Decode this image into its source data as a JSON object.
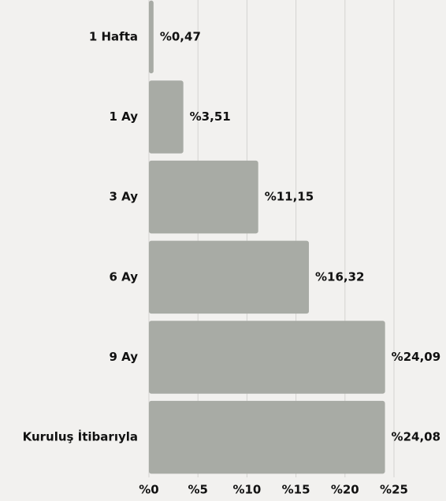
{
  "chart_data": {
    "type": "bar",
    "orientation": "horizontal",
    "categories": [
      "1 Hafta",
      "1 Ay",
      "3 Ay",
      "6 Ay",
      "9 Ay",
      "Kuruluş İtibarıyla"
    ],
    "values": [
      0.47,
      3.51,
      11.15,
      16.32,
      24.09,
      24.08
    ],
    "value_labels": [
      "%0,47",
      "%3,51",
      "%11,15",
      "%16,32",
      "%24,09",
      "%24,08"
    ],
    "color": "#a8aba5",
    "xlim": [
      0,
      25
    ],
    "xticks": [
      {
        "value": 0,
        "label": "%0"
      },
      {
        "value": 5,
        "label": "%5"
      },
      {
        "value": 10,
        "label": "%10"
      },
      {
        "value": 15,
        "label": "%15"
      },
      {
        "value": 20,
        "label": "%20"
      },
      {
        "value": 25,
        "label": "%25"
      }
    ],
    "grid": true
  }
}
